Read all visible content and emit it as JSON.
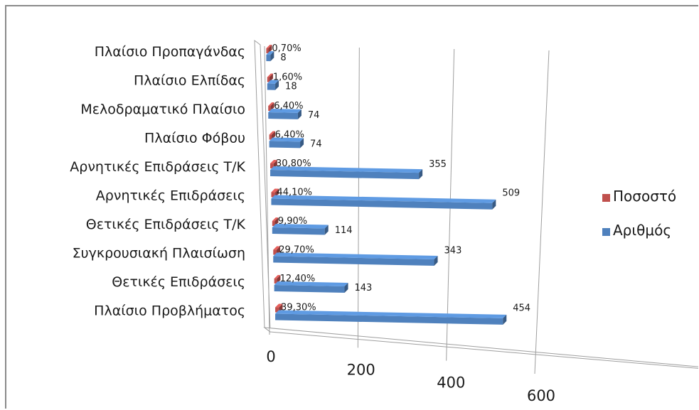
{
  "chart_data": {
    "type": "bar",
    "orientation": "horizontal",
    "style": "3d-perspective",
    "categories": [
      "Πλαίσιο Προβλήματος",
      "Θετικές Επιδράσεις",
      "Συγκρουσιακή Πλαισίωση",
      "Θετικές Επιδράσεις Τ/Κ",
      "Αρνητικές Επιδράσεις",
      "Αρνητικές Επιδράσεις Τ/Κ",
      "Πλαίσιο Φόβου",
      "Μελοδραματικό Πλαίσιο",
      "Πλαίσιο Ελπίδας",
      "Πλαίσιο Προπαγάνδας"
    ],
    "series": [
      {
        "name": "Ποσοστό",
        "color": "#c0504d",
        "values": [
          0.393,
          0.124,
          0.297,
          0.099,
          0.441,
          0.308,
          0.064,
          0.064,
          0.016,
          0.007
        ],
        "labels": [
          "39,30%",
          "12,40%",
          "29,70%",
          "9,90%",
          "44,10%",
          "30,80%",
          "6,40%",
          "6,40%",
          "1,60%",
          "0,70%"
        ]
      },
      {
        "name": "Αριθμός",
        "color": "#4f81bd",
        "values": [
          454,
          143,
          343,
          114,
          509,
          355,
          74,
          74,
          18,
          8
        ],
        "labels": [
          "454",
          "143",
          "343",
          "114",
          "509",
          "355",
          "74",
          "74",
          "18",
          "8"
        ]
      }
    ],
    "xlim": [
      0,
      600
    ],
    "x_ticks": [
      "0",
      "200",
      "400",
      "600"
    ],
    "gridlines": true,
    "legend_position": "right"
  }
}
